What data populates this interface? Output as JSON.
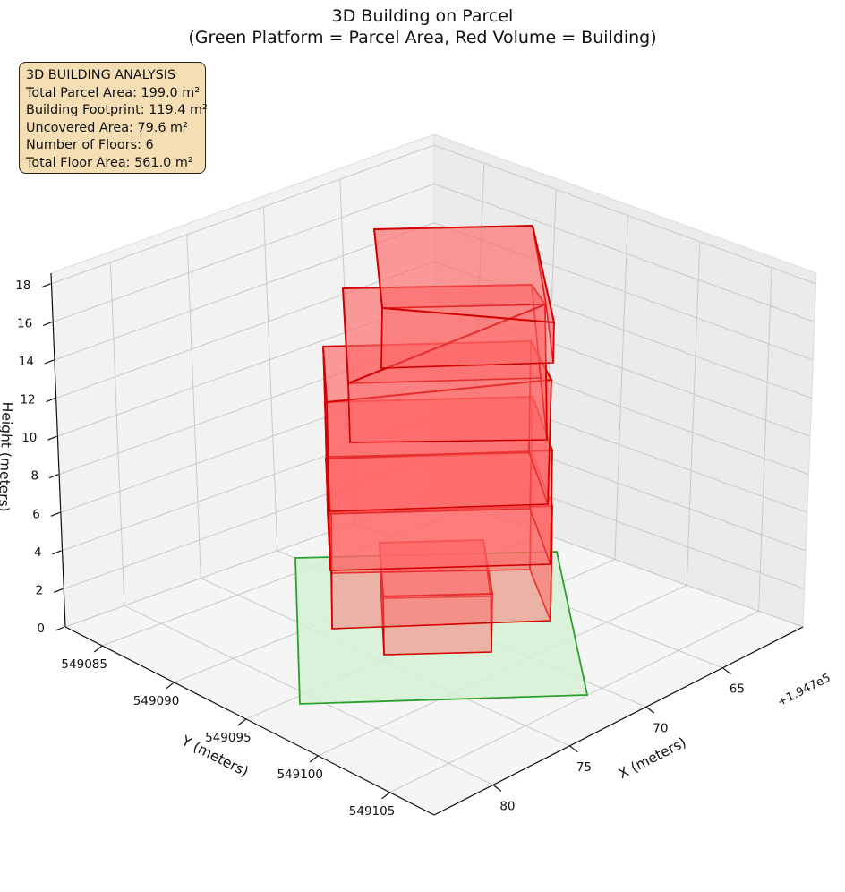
{
  "chart_data": {
    "type": "3d-volume",
    "title": "3D Building on Parcel",
    "subtitle": "(Green Platform = Parcel Area, Red Volume = Building)",
    "xlabel": "X (meters)",
    "ylabel": "Y (meters)",
    "zlabel": "Height (meters)",
    "x_offset_label": "+1.947e5",
    "x_ticks": [
      "65",
      "70",
      "75",
      "80"
    ],
    "y_ticks": [
      "549085",
      "549090",
      "549095",
      "549100",
      "549105"
    ],
    "z_ticks": [
      "0",
      "2",
      "4",
      "6",
      "8",
      "10",
      "12",
      "14",
      "16",
      "18"
    ],
    "grid": true,
    "colors": {
      "parcel_fill": "#d3f1d3",
      "parcel_edge": "#2ca02c",
      "building_fill": "#ff6666",
      "building_edge": "#d40000",
      "panel": "#f2f2f2",
      "info_bg": "#f5deb3"
    },
    "parcel": {
      "height_m": 0
    },
    "floors": [
      {
        "floor": 1,
        "z_range": [
          0,
          3
        ]
      },
      {
        "floor": 2,
        "z_range": [
          3,
          6
        ]
      },
      {
        "floor": 3,
        "z_range": [
          6,
          9
        ]
      },
      {
        "floor": 4,
        "z_range": [
          9,
          12
        ]
      },
      {
        "floor": 5,
        "z_range": [
          12,
          15
        ]
      },
      {
        "floor": 6,
        "z_range": [
          15,
          18
        ]
      }
    ]
  },
  "info": {
    "heading": "3D BUILDING ANALYSIS",
    "total_parcel_area": "Total Parcel Area: 199.0 m²",
    "building_footprint": "Building Footprint: 119.4 m²",
    "uncovered_area": "Uncovered Area: 79.6 m²",
    "floors": "Number of Floors: 6",
    "total_floor_area": "Total Floor Area: 561.0 m²"
  }
}
